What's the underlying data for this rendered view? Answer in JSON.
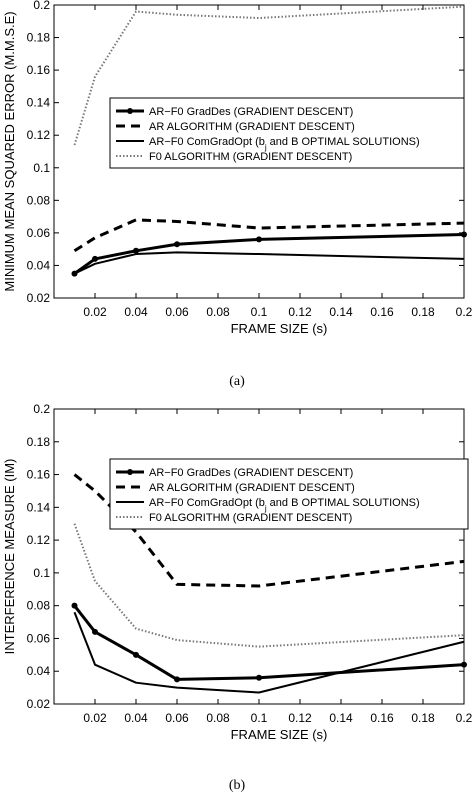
{
  "chart_data": [
    {
      "type": "line",
      "caption": "(a)",
      "xlabel": "FRAME SIZE (s)",
      "ylabel": "MINIMUM MEAN SQUARED ERROR (M.M.S.E)",
      "xlim": [
        0,
        0.2
      ],
      "ylim": [
        0.02,
        0.2
      ],
      "xticks": [
        "0.02",
        "0.04",
        "0.06",
        "0.08",
        "0.1",
        "0.12",
        "0.14",
        "0.16",
        "0.18",
        "0.2"
      ],
      "yticks": [
        "0.02",
        "0.04",
        "0.06",
        "0.08",
        "0.1",
        "0.12",
        "0.14",
        "0.16",
        "0.18",
        "0.2"
      ],
      "legend_position": "upper-right",
      "series": [
        {
          "name": "AR−F0 GradDes (GRADIENT DESCENT)",
          "style": "solid-thick-markers",
          "x": [
            0.01,
            0.02,
            0.04,
            0.06,
            0.1,
            0.2
          ],
          "y": [
            0.035,
            0.044,
            0.049,
            0.053,
            0.056,
            0.059
          ]
        },
        {
          "name": "AR ALGORITHM (GRADIENT DESCENT)",
          "style": "dashed-thick",
          "x": [
            0.01,
            0.02,
            0.04,
            0.06,
            0.1,
            0.2
          ],
          "y": [
            0.049,
            0.057,
            0.068,
            0.067,
            0.063,
            0.066
          ]
        },
        {
          "name": "AR−F0 ComGradOpt (b",
          "name_sub": "j",
          "name_rest": " and B OPTIMAL SOLUTIONS)",
          "style": "solid",
          "x": [
            0.01,
            0.02,
            0.04,
            0.06,
            0.1,
            0.2
          ],
          "y": [
            0.035,
            0.041,
            0.047,
            0.048,
            0.047,
            0.044
          ]
        },
        {
          "name": "F0 ALGORITHM (GRADIENT DESCENT)",
          "style": "dotted",
          "x": [
            0.01,
            0.02,
            0.04,
            0.06,
            0.1,
            0.2
          ],
          "y": [
            0.114,
            0.156,
            0.196,
            0.194,
            0.192,
            0.199
          ]
        }
      ]
    },
    {
      "type": "line",
      "caption": "(b)",
      "xlabel": "FRAME SIZE (s)",
      "ylabel": "INTERFERENCE MEASURE (IM)",
      "xlim": [
        0,
        0.2
      ],
      "ylim": [
        0.02,
        0.2
      ],
      "xticks": [
        "0.02",
        "0.04",
        "0.06",
        "0.08",
        "0.1",
        "0.12",
        "0.14",
        "0.16",
        "0.18",
        "0.2"
      ],
      "yticks": [
        "0.02",
        "0.04",
        "0.06",
        "0.08",
        "0.1",
        "0.12",
        "0.14",
        "0.16",
        "0.18",
        "0.2"
      ],
      "legend_position": "upper-right",
      "series": [
        {
          "name": "AR−F0 GradDes (GRADIENT DESCENT)",
          "style": "solid-thick-markers",
          "x": [
            0.01,
            0.02,
            0.04,
            0.06,
            0.1,
            0.2
          ],
          "y": [
            0.08,
            0.064,
            0.05,
            0.035,
            0.036,
            0.044
          ]
        },
        {
          "name": "AR ALGORITHM (GRADIENT DESCENT)",
          "style": "dashed-thick",
          "x": [
            0.01,
            0.02,
            0.04,
            0.06,
            0.1,
            0.2
          ],
          "y": [
            0.16,
            0.15,
            0.125,
            0.093,
            0.092,
            0.107
          ]
        },
        {
          "name": "AR−F0 ComGradOpt (b",
          "name_sub": "j",
          "name_rest": " and B OPTIMAL SOLUTIONS)",
          "style": "solid",
          "x": [
            0.01,
            0.02,
            0.04,
            0.06,
            0.1,
            0.2
          ],
          "y": [
            0.076,
            0.044,
            0.033,
            0.03,
            0.027,
            0.058
          ]
        },
        {
          "name": "F0 ALGORITHM (GRADIENT DESCENT)",
          "style": "dotted",
          "x": [
            0.01,
            0.02,
            0.04,
            0.06,
            0.1,
            0.2
          ],
          "y": [
            0.13,
            0.095,
            0.066,
            0.059,
            0.055,
            0.062
          ]
        }
      ]
    }
  ]
}
